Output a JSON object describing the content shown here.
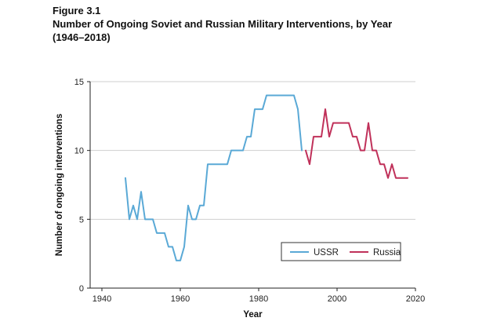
{
  "figure": {
    "label": "Figure 3.1",
    "title_line1": "Number of Ongoing Soviet and Russian Military Interventions, by Year",
    "title_line2": "(1946–2018)"
  },
  "chart_data": {
    "type": "line",
    "xlabel": "Year",
    "ylabel": "Number of ongoing interventions",
    "xlim": [
      1937,
      2020
    ],
    "ylim": [
      0,
      15
    ],
    "xticks": [
      1940,
      1960,
      1980,
      2000,
      2020
    ],
    "yticks": [
      0,
      5,
      10,
      15
    ],
    "grid": "horizontal",
    "legend_position": "bottom-right",
    "series": [
      {
        "name": "USSR",
        "color": "#5aa9d6",
        "x": [
          1946,
          1947,
          1948,
          1949,
          1950,
          1951,
          1952,
          1953,
          1954,
          1955,
          1956,
          1957,
          1958,
          1959,
          1960,
          1961,
          1962,
          1963,
          1964,
          1965,
          1966,
          1967,
          1968,
          1969,
          1970,
          1971,
          1972,
          1973,
          1974,
          1975,
          1976,
          1977,
          1978,
          1979,
          1980,
          1981,
          1982,
          1983,
          1984,
          1985,
          1986,
          1987,
          1988,
          1989,
          1990,
          1991
        ],
        "y": [
          8,
          5,
          6,
          5,
          7,
          5,
          5,
          5,
          4,
          4,
          4,
          3,
          3,
          2,
          2,
          3,
          6,
          5,
          5,
          6,
          6,
          9,
          9,
          9,
          9,
          9,
          9,
          10,
          10,
          10,
          10,
          11,
          11,
          13,
          13,
          13,
          14,
          14,
          14,
          14,
          14,
          14,
          14,
          14,
          13,
          10
        ]
      },
      {
        "name": "Russia",
        "color": "#c0315a",
        "x": [
          1992,
          1993,
          1994,
          1995,
          1996,
          1997,
          1998,
          1999,
          2000,
          2001,
          2002,
          2003,
          2004,
          2005,
          2006,
          2007,
          2008,
          2009,
          2010,
          2011,
          2012,
          2013,
          2014,
          2015,
          2016,
          2017,
          2018
        ],
        "y": [
          10,
          9,
          11,
          11,
          11,
          13,
          11,
          12,
          12,
          12,
          12,
          12,
          11,
          11,
          10,
          10,
          12,
          10,
          10,
          9,
          9,
          8,
          9,
          8,
          8,
          8,
          8
        ]
      }
    ]
  }
}
